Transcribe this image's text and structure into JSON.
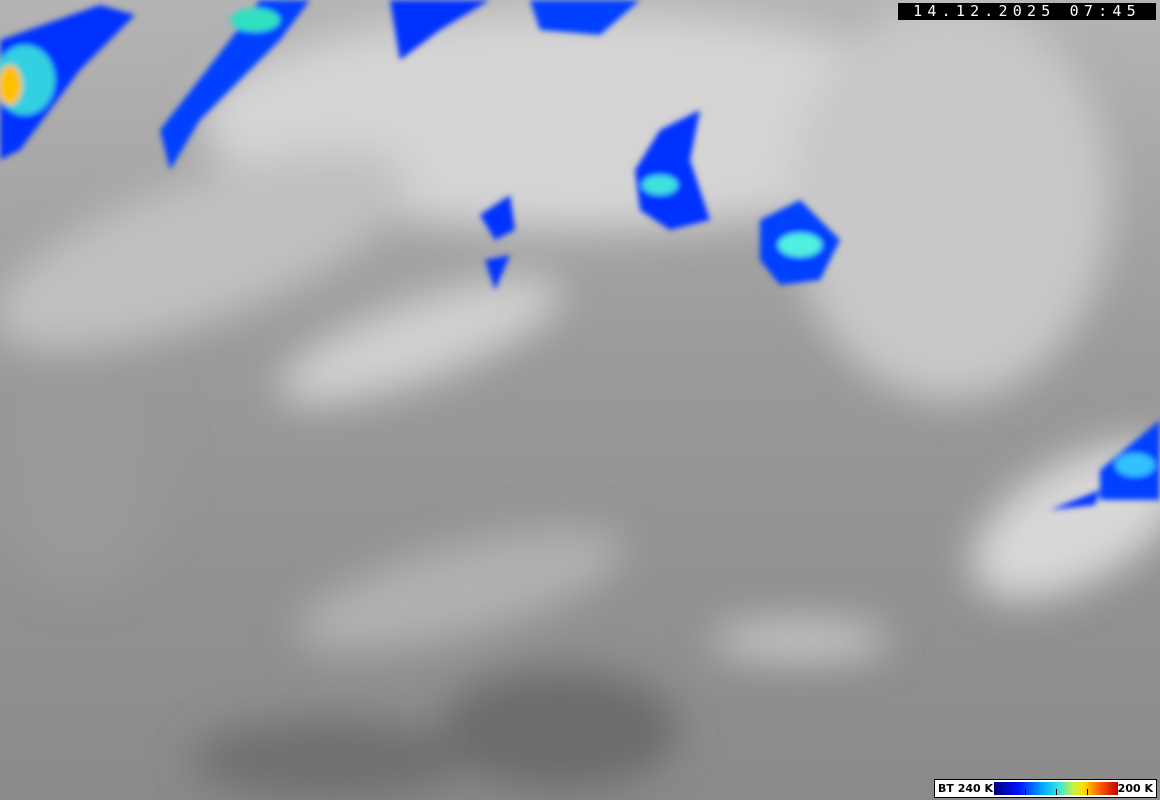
{
  "timestamp": "14.12.2025 07:45",
  "legend": {
    "min_label": "BT 240 K",
    "max_label": "200 K",
    "colors": [
      "#00007a",
      "#0010ff",
      "#00a0ff",
      "#30e8e0",
      "#c8f040",
      "#ffe000",
      "#ff6000",
      "#c00000"
    ]
  },
  "image": {
    "type": "infrared satellite imagery",
    "background_color": "#8c8c8c"
  }
}
